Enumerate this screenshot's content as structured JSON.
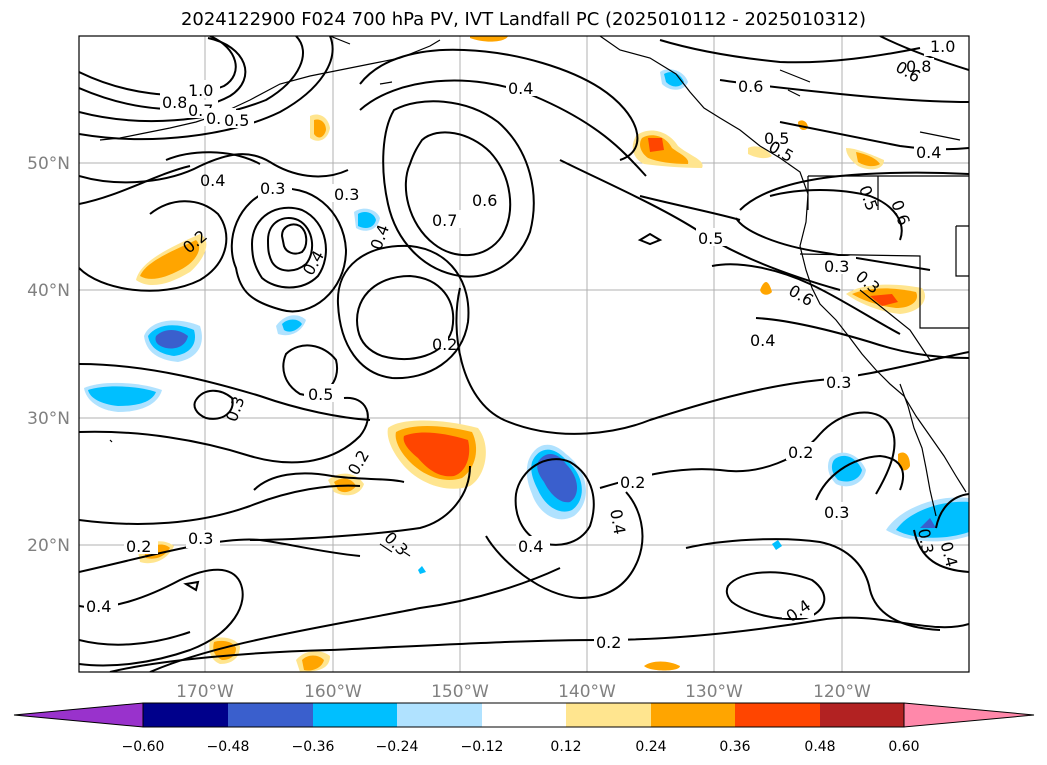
{
  "title": "2024122900 F024 700 hPa PV, IVT Landfall PC (2025010112 - 2025010312)",
  "axes": {
    "lon_labels": [
      "170°W",
      "160°W",
      "150°W",
      "140°W",
      "130°W",
      "120°W"
    ],
    "lat_labels": [
      "50°N",
      "40°N",
      "30°N",
      "20°N"
    ]
  },
  "colorbar": {
    "ticks": [
      "−0.60",
      "−0.48",
      "−0.36",
      "−0.24",
      "−0.12",
      "0.12",
      "0.24",
      "0.36",
      "0.48",
      "0.60"
    ],
    "colors": [
      "#9932cc",
      "#00008b",
      "#3a5fcd",
      "#00bfff",
      "#b0e2ff",
      "#ffffff",
      "#ffe58f",
      "#ffa500",
      "#ff4500",
      "#b22222",
      "#ff88aa"
    ]
  },
  "contour_labels": [
    "1.0",
    "0.8",
    "0.7",
    "0.6",
    "0.5",
    "0.4",
    "0.3",
    "0.2",
    "1.0",
    "0.8",
    "0.6",
    "0.5",
    "0.4",
    "0.3",
    "0.7",
    "0.6",
    "0.5",
    "0.4",
    "0.3",
    "0.2",
    "0.5",
    "0.3",
    "0.2",
    "0.3",
    "0.4",
    "0.2",
    "0.2",
    "0.4",
    "0.3",
    "0.2",
    "0.3",
    "0.4",
    "0.4",
    "0.4",
    "0.6",
    "0.5",
    "0.4",
    "0.6",
    "0.5",
    "0.3",
    "0.3",
    "0.6",
    "0.4",
    "0.3",
    "0.2",
    "0.3",
    "0.3",
    "0.4",
    "0.2",
    "0.4",
    "0.2"
  ]
}
